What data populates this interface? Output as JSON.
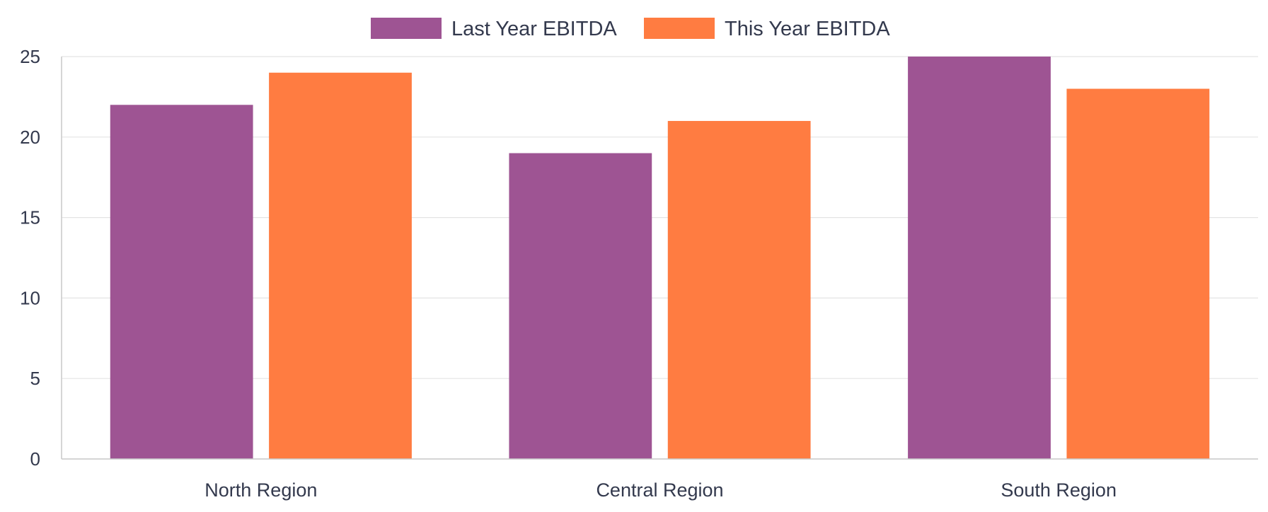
{
  "chart_data": {
    "type": "bar",
    "categories": [
      "North Region",
      "Central Region",
      "South Region"
    ],
    "series": [
      {
        "name": "Last Year EBITDA",
        "values": [
          22,
          19,
          25
        ],
        "color": "#9e5493"
      },
      {
        "name": "This Year EBITDA",
        "values": [
          24,
          21,
          23
        ],
        "color": "#ff7c41"
      }
    ],
    "y_ticks": [
      "0",
      "5",
      "10",
      "15",
      "20",
      "25"
    ],
    "ylim": [
      0,
      25
    ],
    "xlabel": "",
    "ylabel": "",
    "grid": true,
    "legend_position": "top"
  }
}
